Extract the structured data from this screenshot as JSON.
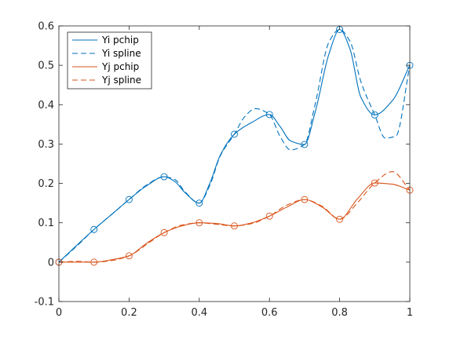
{
  "chart_data": {
    "type": "line",
    "title": "",
    "xlabel": "",
    "ylabel": "",
    "xlim": [
      0,
      1
    ],
    "ylim": [
      -0.1,
      0.6
    ],
    "x_ticks": [
      0,
      0.2,
      0.4,
      0.6,
      0.8,
      1
    ],
    "x_tick_labels": [
      "0",
      "0.2",
      "0.4",
      "0.6",
      "0.8",
      "1"
    ],
    "y_ticks": [
      -0.1,
      0,
      0.1,
      0.2,
      0.3,
      0.4,
      0.5,
      0.6
    ],
    "y_tick_labels": [
      "-0.1",
      "0",
      "0.1",
      "0.2",
      "0.3",
      "0.4",
      "0.5",
      "0.6"
    ],
    "grid": false,
    "legend_position": "top-left",
    "markers": [
      {
        "color": "#0072BD",
        "x": [
          0,
          0.1,
          0.2,
          0.3,
          0.4,
          0.5,
          0.6,
          0.7,
          0.8,
          0.9,
          1
        ],
        "y": [
          0,
          0.083,
          0.159,
          0.217,
          0.15,
          0.325,
          0.375,
          0.299,
          0.591,
          0.374,
          0.5
        ]
      },
      {
        "color": "#D95319",
        "x": [
          0,
          0.1,
          0.2,
          0.3,
          0.4,
          0.5,
          0.6,
          0.7,
          0.8,
          0.9,
          1
        ],
        "y": [
          0,
          0,
          0.016,
          0.075,
          0.1,
          0.092,
          0.117,
          0.159,
          0.109,
          0.201,
          0.183
        ]
      }
    ],
    "series": [
      {
        "name": "Yi pchip",
        "color": "#0072BD",
        "dash": "solid",
        "x": [
          0,
          0.05,
          0.1,
          0.15,
          0.2,
          0.25,
          0.3,
          0.33,
          0.36,
          0.4,
          0.43,
          0.46,
          0.5,
          0.55,
          0.6,
          0.63,
          0.66,
          0.7,
          0.73,
          0.77,
          0.8,
          0.83,
          0.86,
          0.9,
          0.95,
          1
        ],
        "y": [
          0,
          0.042,
          0.083,
          0.121,
          0.159,
          0.194,
          0.217,
          0.205,
          0.176,
          0.15,
          0.2,
          0.272,
          0.325,
          0.355,
          0.375,
          0.345,
          0.308,
          0.299,
          0.38,
          0.53,
          0.591,
          0.54,
          0.42,
          0.374,
          0.41,
          0.5
        ]
      },
      {
        "name": "Yi spline",
        "color": "#0072BD",
        "dash": "dashed",
        "x": [
          0,
          0.05,
          0.1,
          0.15,
          0.2,
          0.25,
          0.3,
          0.33,
          0.36,
          0.4,
          0.43,
          0.46,
          0.5,
          0.53,
          0.56,
          0.6,
          0.63,
          0.66,
          0.7,
          0.73,
          0.77,
          0.8,
          0.83,
          0.86,
          0.9,
          0.93,
          0.96,
          1
        ],
        "y": [
          0,
          0.04,
          0.083,
          0.121,
          0.159,
          0.196,
          0.217,
          0.21,
          0.178,
          0.15,
          0.195,
          0.27,
          0.325,
          0.37,
          0.39,
          0.375,
          0.32,
          0.285,
          0.299,
          0.4,
          0.56,
          0.591,
          0.56,
          0.46,
          0.374,
          0.315,
          0.32,
          0.5
        ]
      },
      {
        "name": "Yj pchip",
        "color": "#D95319",
        "dash": "solid",
        "x": [
          0,
          0.05,
          0.1,
          0.15,
          0.2,
          0.25,
          0.3,
          0.35,
          0.4,
          0.45,
          0.5,
          0.55,
          0.6,
          0.65,
          0.7,
          0.75,
          0.8,
          0.85,
          0.9,
          0.95,
          1
        ],
        "y": [
          0,
          0,
          0,
          0.006,
          0.016,
          0.048,
          0.075,
          0.092,
          0.1,
          0.098,
          0.092,
          0.1,
          0.117,
          0.14,
          0.159,
          0.14,
          0.109,
          0.16,
          0.201,
          0.198,
          0.183
        ]
      },
      {
        "name": "Yj spline",
        "color": "#D95319",
        "dash": "dashed",
        "x": [
          0,
          0.05,
          0.1,
          0.15,
          0.2,
          0.25,
          0.3,
          0.35,
          0.4,
          0.45,
          0.5,
          0.55,
          0.6,
          0.65,
          0.7,
          0.75,
          0.8,
          0.85,
          0.9,
          0.95,
          1
        ],
        "y": [
          0,
          0.002,
          0,
          0.004,
          0.016,
          0.045,
          0.075,
          0.094,
          0.1,
          0.096,
          0.092,
          0.098,
          0.117,
          0.145,
          0.159,
          0.142,
          0.109,
          0.15,
          0.201,
          0.23,
          0.183
        ]
      }
    ]
  }
}
